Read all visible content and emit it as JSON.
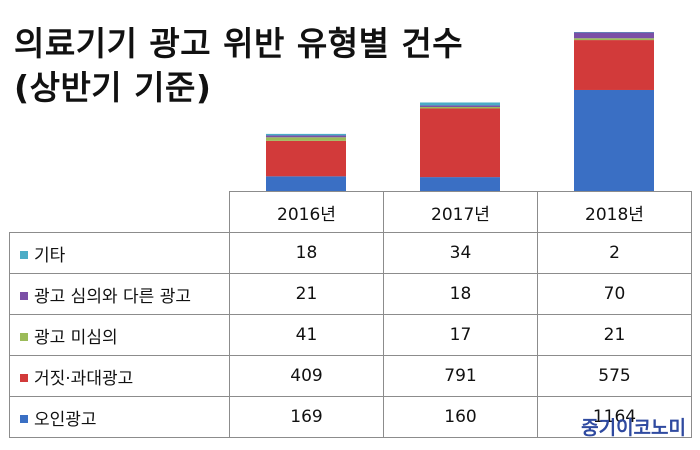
{
  "title": {
    "line1": "의료기기 광고 위반 유형별 건수",
    "line2": "(상반기 기준)"
  },
  "brand": "중기이코노미",
  "chart_data": {
    "type": "bar",
    "stacked": true,
    "categories": [
      "2016년",
      "2017년",
      "2018년"
    ],
    "series": [
      {
        "name": "기타",
        "color": "#4bacc6",
        "values": [
          18,
          34,
          2
        ]
      },
      {
        "name": "광고 심의와 다른 광고",
        "color": "#7b4fa6",
        "values": [
          21,
          18,
          70
        ]
      },
      {
        "name": "광고 미심의",
        "color": "#9bbb59",
        "values": [
          41,
          17,
          21
        ]
      },
      {
        "name": "거짓·과대광고",
        "color": "#d23a3a",
        "values": [
          409,
          791,
          575
        ]
      },
      {
        "name": "오인광고",
        "color": "#3a6fc4",
        "values": [
          169,
          160,
          1164
        ]
      }
    ],
    "legend": "table-left",
    "grid": false
  }
}
